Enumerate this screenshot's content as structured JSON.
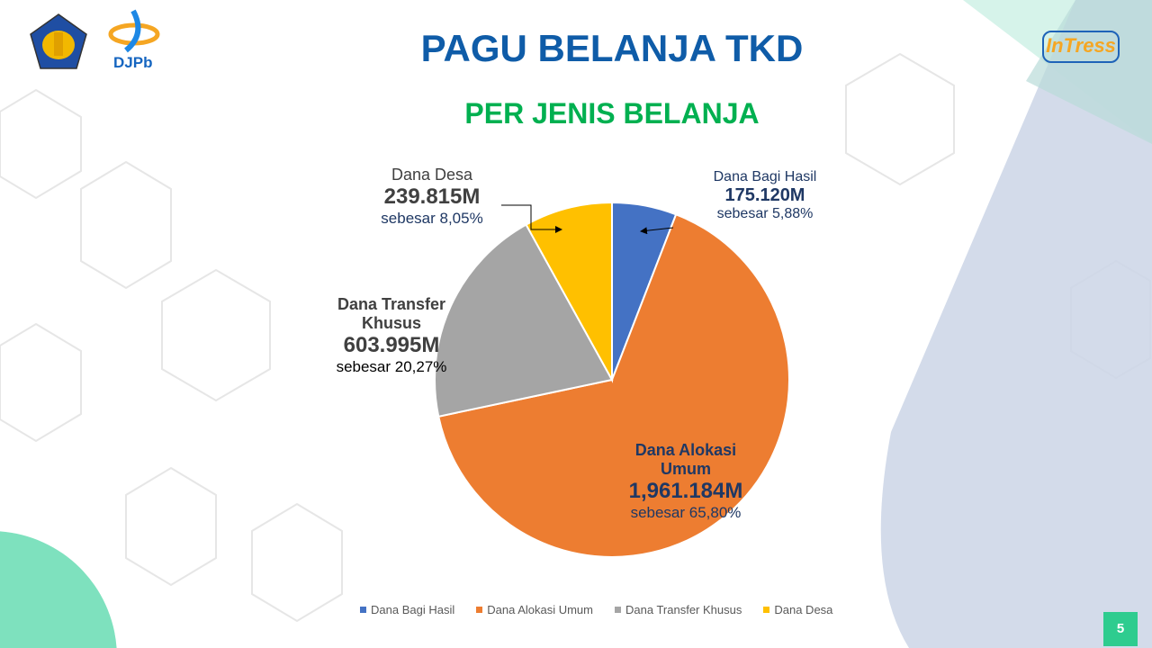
{
  "header": {
    "title": "PAGU BELANJA TKD",
    "subtitle": "PER JENIS BELANJA",
    "logo_djpb": "DJPb",
    "logo_intress": "InTress"
  },
  "page_number": "5",
  "chart_data": {
    "type": "pie",
    "title": "PAGU BELANJA TKD - PER JENIS BELANJA",
    "unit": "M",
    "start": "12 o'clock, clockwise",
    "slices": [
      {
        "name": "Dana Bagi Hasil",
        "value_label": "175.120M",
        "percent_label": "sebesar 5,88%",
        "percent": 5.88,
        "color": "#4472c4"
      },
      {
        "name": "Dana Alokasi Umum",
        "name_lines": [
          "Dana Alokasi",
          "Umum"
        ],
        "value_label": "1,961.184M",
        "percent_label": "sebesar 65,80%",
        "percent": 65.8,
        "color": "#ed7d31"
      },
      {
        "name": "Dana Transfer Khusus",
        "name_lines": [
          "Dana Transfer",
          "Khusus"
        ],
        "value_label": "603.995M",
        "percent_label": "sebesar 20,27%",
        "percent": 20.27,
        "color": "#a5a5a5"
      },
      {
        "name": "Dana Desa",
        "value_label": "239.815M",
        "percent_label": "sebesar 8,05%",
        "percent": 8.05,
        "color": "#ffc000"
      }
    ],
    "legend_position": "bottom"
  }
}
